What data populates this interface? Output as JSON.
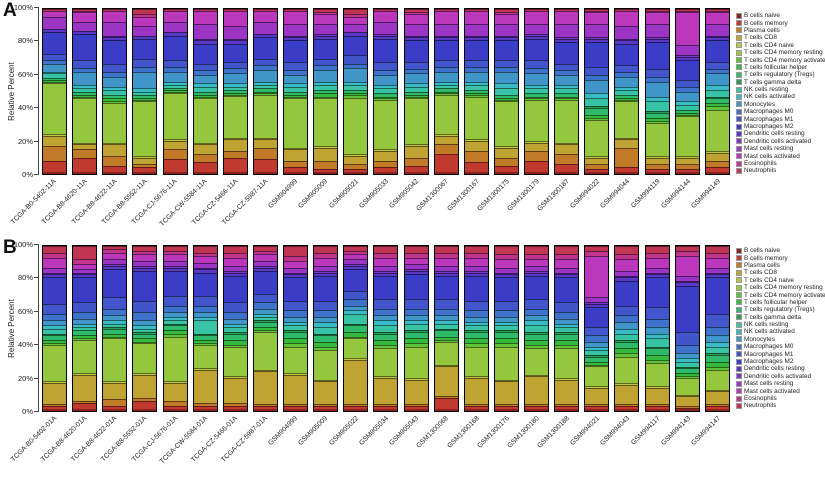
{
  "figure": {
    "panel_a_label": "A",
    "panel_b_label": "B"
  },
  "chart_data": [
    {
      "type": "bar",
      "stacked": true,
      "panel": "A",
      "ylabel": "Relative Percent",
      "ylim": [
        0,
        100
      ],
      "y_tick_labels": [
        "0%",
        "20%",
        "40%",
        "60%",
        "80%",
        "100%"
      ],
      "grid": false,
      "legend_position": "right",
      "note": "Stacked CIBERSORT immune-cell fractions per sample; segments stack bottom (B cells naive) to top (Neutrophils); values are percent estimates read from the plot",
      "categories": [
        "B cells naive",
        "B cells memory",
        "Plasma cells",
        "T cells CD8",
        "T cells CD4 naive",
        "T cells CD4 memory resting",
        "T cells CD4 memory activated",
        "T cells follicular helper",
        "T cells regulatory (Tregs)",
        "T cells gamma delta",
        "NK cells resting",
        "NK cells activated",
        "Monocytes",
        "Macrophages M0",
        "Macrophages M1",
        "Macrophages M2",
        "Dendritic cells resting",
        "Dendritic cells activated",
        "Mast cells resting",
        "Mast cells activated",
        "Eosinophils",
        "Neutrophils"
      ],
      "colors": [
        "#8b2020",
        "#c03a30",
        "#c07a28",
        "#bfa433",
        "#b8c840",
        "#95c73e",
        "#5ec437",
        "#35b93e",
        "#2eb96b",
        "#2a9e55",
        "#38c2a6",
        "#3ab9c6",
        "#4095c9",
        "#3f72ca",
        "#4355cb",
        "#3c3dc6",
        "#5a38c5",
        "#7a36c4",
        "#9c35c4",
        "#bb37bb",
        "#c03489",
        "#bf3552"
      ],
      "samples": [
        "TCGA-B0-5402-11A",
        "TCGA-B8-4620-11A",
        "TCGA-B8-4622-11A",
        "TCGA-B8-5552-11A",
        "TCGA-CJ-5676-11A",
        "TCGA-CW-5584-11A",
        "TCGA-CZ-5466-11A",
        "TCGA-CZ-5987-11A",
        "GSM904999",
        "GSM905009",
        "GSM905021",
        "GSM905033",
        "GSM905042",
        "GSM1300067",
        "GSM1300167",
        "GSM1300175",
        "GSM1300179",
        "GSM1300187",
        "GSM994022",
        "GSM994044",
        "GSM994119",
        "GSM994144",
        "GSM994149"
      ],
      "values": [
        [
          1,
          7,
          9,
          6,
          1,
          31,
          1,
          1,
          1,
          0,
          3,
          1,
          5,
          2,
          4,
          13,
          2,
          0,
          7,
          4,
          0,
          1
        ],
        [
          1,
          9,
          5,
          3,
          1,
          27,
          1,
          1,
          2,
          0,
          2,
          2,
          8,
          2,
          5,
          16,
          2,
          0,
          5,
          6,
          1,
          1
        ],
        [
          1,
          4,
          6,
          7,
          1,
          24,
          1,
          2,
          2,
          0,
          3,
          2,
          6,
          3,
          5,
          14,
          2,
          1,
          8,
          7,
          0,
          1
        ],
        [
          1,
          3,
          2,
          4,
          1,
          33,
          1,
          1,
          2,
          0,
          2,
          2,
          10,
          3,
          5,
          12,
          2,
          0,
          6,
          5,
          2,
          3
        ],
        [
          1,
          8,
          6,
          5,
          1,
          28,
          1,
          1,
          1,
          0,
          2,
          2,
          6,
          3,
          4,
          15,
          2,
          0,
          6,
          7,
          0,
          1
        ],
        [
          1,
          6,
          5,
          6,
          1,
          27,
          1,
          1,
          2,
          0,
          3,
          2,
          5,
          3,
          4,
          12,
          2,
          1,
          9,
          8,
          0,
          1
        ],
        [
          1,
          9,
          4,
          7,
          1,
          25,
          1,
          1,
          2,
          0,
          2,
          2,
          6,
          3,
          4,
          11,
          2,
          1,
          8,
          9,
          0,
          1
        ],
        [
          1,
          8,
          7,
          5,
          1,
          26,
          1,
          1,
          2,
          0,
          2,
          2,
          7,
          3,
          4,
          13,
          2,
          0,
          7,
          7,
          0,
          1
        ],
        [
          1,
          3,
          4,
          7,
          1,
          30,
          1,
          1,
          2,
          0,
          3,
          2,
          5,
          3,
          5,
          13,
          2,
          1,
          7,
          8,
          0,
          1
        ],
        [
          1,
          2,
          5,
          8,
          1,
          29,
          1,
          2,
          2,
          0,
          3,
          2,
          7,
          3,
          4,
          12,
          2,
          1,
          6,
          6,
          1,
          2
        ],
        [
          1,
          2,
          3,
          5,
          1,
          34,
          2,
          1,
          2,
          0,
          3,
          2,
          8,
          3,
          5,
          12,
          2,
          0,
          5,
          4,
          2,
          3
        ],
        [
          1,
          3,
          4,
          6,
          1,
          30,
          1,
          1,
          2,
          0,
          3,
          2,
          6,
          3,
          5,
          14,
          2,
          1,
          7,
          7,
          0,
          1
        ],
        [
          1,
          4,
          5,
          7,
          1,
          28,
          1,
          1,
          2,
          0,
          3,
          2,
          6,
          3,
          4,
          13,
          2,
          1,
          7,
          6,
          1,
          2
        ],
        [
          1,
          11,
          6,
          5,
          1,
          24,
          1,
          1,
          2,
          0,
          2,
          2,
          6,
          3,
          4,
          12,
          2,
          1,
          7,
          8,
          0,
          1
        ],
        [
          1,
          6,
          7,
          6,
          1,
          26,
          1,
          1,
          2,
          0,
          3,
          2,
          6,
          3,
          4,
          12,
          2,
          1,
          7,
          8,
          0,
          1
        ],
        [
          1,
          4,
          5,
          6,
          1,
          27,
          1,
          1,
          2,
          0,
          4,
          3,
          7,
          3,
          4,
          12,
          2,
          1,
          7,
          6,
          1,
          2
        ],
        [
          1,
          7,
          6,
          5,
          1,
          25,
          1,
          1,
          2,
          0,
          3,
          2,
          7,
          3,
          5,
          13,
          2,
          1,
          6,
          8,
          0,
          1
        ],
        [
          1,
          5,
          6,
          6,
          1,
          26,
          1,
          1,
          2,
          0,
          3,
          2,
          6,
          3,
          4,
          13,
          2,
          1,
          8,
          8,
          0,
          1
        ],
        [
          1,
          2,
          3,
          4,
          1,
          22,
          1,
          2,
          4,
          1,
          5,
          3,
          8,
          3,
          5,
          15,
          2,
          1,
          8,
          7,
          1,
          1
        ],
        [
          1,
          3,
          12,
          5,
          1,
          22,
          1,
          1,
          2,
          0,
          3,
          2,
          6,
          3,
          4,
          13,
          2,
          1,
          8,
          9,
          0,
          1
        ],
        [
          1,
          2,
          3,
          4,
          1,
          20,
          1,
          2,
          3,
          1,
          6,
          3,
          9,
          3,
          5,
          16,
          2,
          1,
          8,
          7,
          1,
          1
        ],
        [
          1,
          2,
          3,
          4,
          1,
          24,
          1,
          1,
          2,
          0,
          3,
          2,
          6,
          3,
          4,
          12,
          2,
          1,
          6,
          20,
          1,
          1
        ],
        [
          1,
          3,
          4,
          5,
          1,
          25,
          2,
          2,
          3,
          1,
          4,
          3,
          7,
          3,
          4,
          13,
          2,
          1,
          7,
          7,
          1,
          1
        ]
      ]
    },
    {
      "type": "bar",
      "stacked": true,
      "panel": "B",
      "ylabel": "Relative Percent",
      "ylim": [
        0,
        100
      ],
      "y_tick_labels": [
        "0%",
        "20%",
        "40%",
        "60%",
        "80%",
        "100%"
      ],
      "grid": false,
      "legend_position": "right",
      "note": "Stacked CIBERSORT immune-cell fractions per sample; segments stack bottom (B cells naive) to top (Neutrophils); values are percent estimates read from the plot",
      "categories": [
        "B cells naive",
        "B cells memory",
        "Plasma cells",
        "T cells CD8",
        "T cells CD4 naive",
        "T cells CD4 memory resting",
        "T cells CD4 memory activated",
        "T cells follicular helper",
        "T cells regulatory (Tregs)",
        "T cells gamma delta",
        "NK cells resting",
        "NK cells activated",
        "Monocytes",
        "Macrophages M0",
        "Macrophages M1",
        "Macrophages M2",
        "Dendritic cells resting",
        "Dendritic cells activated",
        "Mast cells resting",
        "Mast cells activated",
        "Eosinophils",
        "Neutrophils"
      ],
      "colors": [
        "#8b2020",
        "#c03a30",
        "#c07a28",
        "#bfa433",
        "#b8c840",
        "#95c73e",
        "#5ec437",
        "#35b93e",
        "#2eb96b",
        "#2a9e55",
        "#38c2a6",
        "#3ab9c6",
        "#4095c9",
        "#3f72ca",
        "#4355cb",
        "#3c3dc6",
        "#5a38c5",
        "#7a36c4",
        "#9c35c4",
        "#bb37bb",
        "#c03489",
        "#bf3552"
      ],
      "samples": [
        "TCGA-B0-5402-01A",
        "TCGA-B8-4620-01A",
        "TCGA-B8-4622-01A",
        "TCGA-B8-5552-01A",
        "TCGA-CJ-5676-01A",
        "TCGA-CW-5584-01A",
        "TCGA-CZ-5466-01A",
        "TCGA-CZ-5987-01A",
        "GSM904999",
        "GSM905009",
        "GSM905022",
        "GSM905034",
        "GSM905043",
        "GSM1300068",
        "GSM1300168",
        "GSM1300176",
        "GSM1300180",
        "GSM1300188",
        "GSM994021",
        "GSM994043",
        "GSM994117",
        "GSM994143",
        "GSM994147"
      ],
      "values": [
        [
          1,
          2,
          1,
          13,
          1,
          22,
          1,
          2,
          3,
          1,
          3,
          2,
          3,
          4,
          6,
          16,
          2,
          1,
          3,
          6,
          3,
          4
        ],
        [
          1,
          4,
          1,
          16,
          1,
          20,
          1,
          2,
          3,
          0,
          2,
          2,
          3,
          4,
          6,
          15,
          2,
          1,
          2,
          3,
          3,
          8
        ],
        [
          1,
          2,
          4,
          10,
          1,
          26,
          1,
          2,
          3,
          1,
          2,
          2,
          3,
          4,
          7,
          17,
          2,
          1,
          3,
          4,
          2,
          2
        ],
        [
          1,
          5,
          2,
          14,
          1,
          18,
          1,
          2,
          3,
          1,
          2,
          2,
          3,
          5,
          7,
          18,
          2,
          1,
          3,
          4,
          2,
          3
        ],
        [
          1,
          2,
          3,
          11,
          1,
          27,
          2,
          2,
          3,
          1,
          2,
          2,
          3,
          4,
          6,
          15,
          2,
          1,
          3,
          4,
          2,
          3
        ],
        [
          1,
          2,
          2,
          20,
          1,
          14,
          1,
          2,
          3,
          1,
          8,
          2,
          3,
          4,
          6,
          14,
          2,
          1,
          3,
          4,
          2,
          4
        ],
        [
          1,
          2,
          2,
          15,
          1,
          18,
          1,
          3,
          4,
          1,
          3,
          2,
          3,
          4,
          6,
          16,
          2,
          1,
          3,
          5,
          3,
          4
        ],
        [
          1,
          2,
          1,
          20,
          1,
          23,
          1,
          2,
          3,
          1,
          2,
          2,
          3,
          4,
          5,
          14,
          2,
          1,
          3,
          4,
          2,
          3
        ],
        [
          1,
          2,
          1,
          18,
          1,
          16,
          2,
          3,
          4,
          1,
          3,
          2,
          3,
          4,
          6,
          14,
          2,
          1,
          3,
          4,
          3,
          6
        ],
        [
          1,
          2,
          1,
          14,
          1,
          18,
          2,
          3,
          4,
          1,
          4,
          3,
          3,
          4,
          6,
          15,
          2,
          1,
          3,
          5,
          3,
          4
        ],
        [
          1,
          2,
          1,
          27,
          1,
          12,
          1,
          3,
          4,
          1,
          6,
          2,
          3,
          4,
          5,
          13,
          2,
          1,
          3,
          3,
          2,
          3
        ],
        [
          1,
          2,
          1,
          16,
          1,
          17,
          2,
          3,
          4,
          1,
          4,
          3,
          3,
          4,
          6,
          14,
          2,
          1,
          3,
          5,
          3,
          4
        ],
        [
          1,
          2,
          1,
          15,
          1,
          19,
          2,
          3,
          4,
          1,
          4,
          2,
          3,
          4,
          6,
          15,
          2,
          1,
          3,
          4,
          3,
          4
        ],
        [
          1,
          7,
          1,
          18,
          1,
          14,
          1,
          2,
          4,
          1,
          3,
          2,
          3,
          4,
          6,
          14,
          2,
          1,
          3,
          5,
          3,
          4
        ],
        [
          1,
          2,
          1,
          16,
          1,
          18,
          2,
          3,
          4,
          1,
          3,
          2,
          3,
          4,
          6,
          15,
          2,
          1,
          3,
          5,
          3,
          4
        ],
        [
          1,
          2,
          1,
          14,
          1,
          20,
          2,
          3,
          4,
          1,
          3,
          2,
          3,
          4,
          6,
          14,
          2,
          1,
          3,
          5,
          3,
          5
        ],
        [
          1,
          2,
          1,
          17,
          1,
          16,
          2,
          3,
          4,
          1,
          4,
          3,
          3,
          4,
          6,
          14,
          2,
          1,
          3,
          4,
          3,
          5
        ],
        [
          1,
          2,
          1,
          15,
          1,
          18,
          2,
          3,
          4,
          1,
          3,
          2,
          3,
          4,
          6,
          15,
          2,
          1,
          3,
          5,
          3,
          5
        ],
        [
          1,
          2,
          1,
          10,
          1,
          12,
          1,
          2,
          3,
          1,
          3,
          2,
          3,
          4,
          5,
          12,
          2,
          1,
          3,
          25,
          3,
          3
        ],
        [
          1,
          2,
          1,
          12,
          1,
          16,
          2,
          3,
          4,
          1,
          4,
          3,
          4,
          4,
          6,
          15,
          2,
          1,
          3,
          7,
          3,
          5
        ],
        [
          1,
          2,
          1,
          10,
          1,
          14,
          2,
          3,
          4,
          1,
          5,
          3,
          4,
          5,
          7,
          18,
          2,
          1,
          3,
          6,
          3,
          4
        ],
        [
          1,
          1,
          1,
          6,
          1,
          10,
          1,
          2,
          3,
          1,
          3,
          2,
          3,
          5,
          8,
          28,
          2,
          1,
          3,
          12,
          3,
          3
        ],
        [
          1,
          2,
          1,
          8,
          1,
          12,
          2,
          3,
          4,
          1,
          4,
          3,
          4,
          5,
          8,
          22,
          2,
          1,
          3,
          6,
          3,
          4
        ]
      ]
    }
  ]
}
